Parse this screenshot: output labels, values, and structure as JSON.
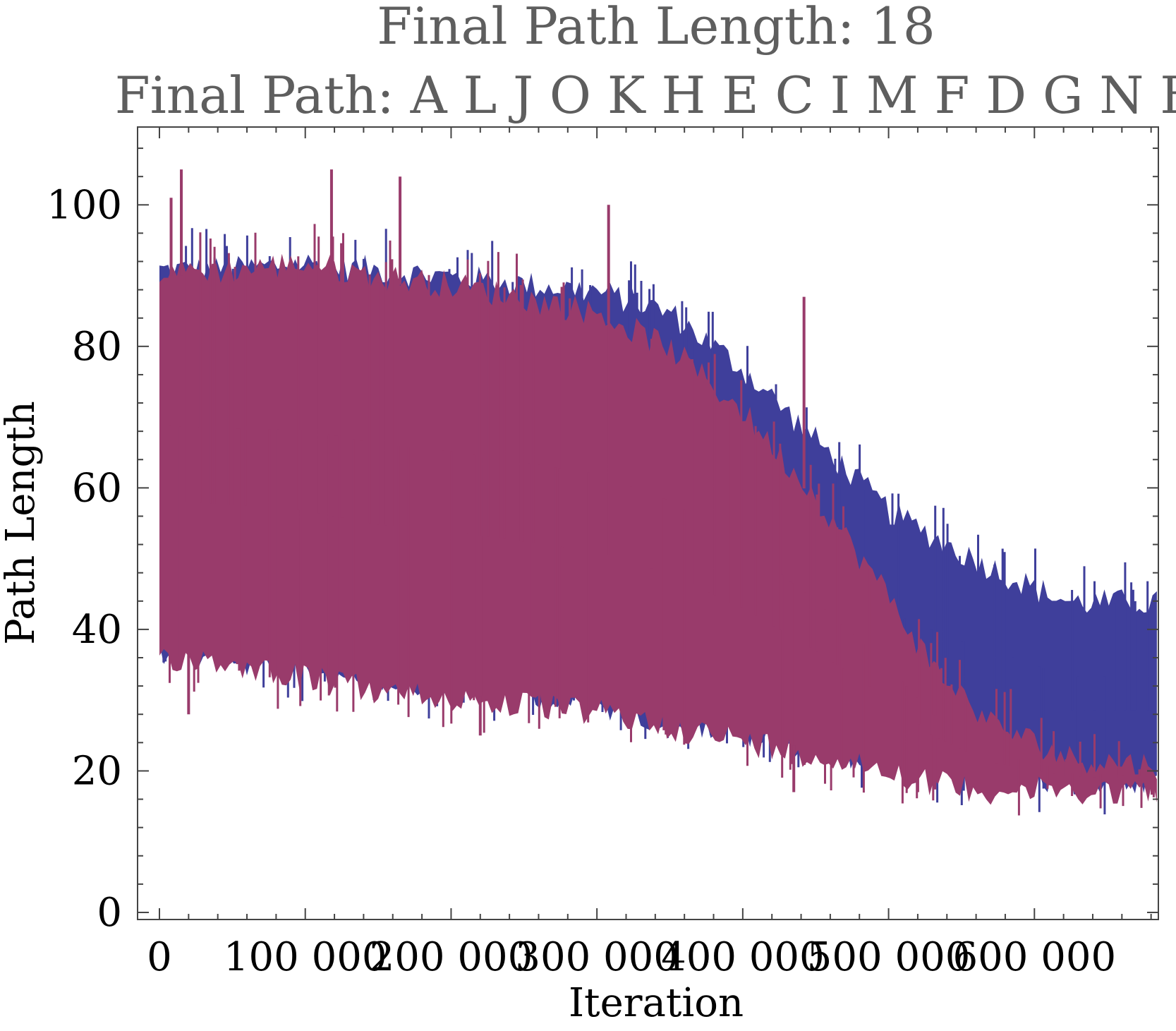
{
  "chart_data": {
    "type": "line",
    "title": "Final Path Length: 18",
    "subtitle": "Final Path: A L J O K H E C I M F D G N B",
    "xlabel": "Iteration",
    "ylabel": "Path Length",
    "xlim": [
      -15000,
      685000
    ],
    "ylim": [
      -1,
      111
    ],
    "x_ticks": [
      {
        "value": 0,
        "label": "0"
      },
      {
        "value": 100000,
        "label": "100 000"
      },
      {
        "value": 200000,
        "label": "200 000"
      },
      {
        "value": 300000,
        "label": "300 000"
      },
      {
        "value": 400000,
        "label": "400 000"
      },
      {
        "value": 500000,
        "label": "500 000"
      },
      {
        "value": 600000,
        "label": "600 000"
      }
    ],
    "y_ticks": [
      {
        "value": 0,
        "label": "0"
      },
      {
        "value": 20,
        "label": "20"
      },
      {
        "value": 40,
        "label": "40"
      },
      {
        "value": 60,
        "label": "60"
      },
      {
        "value": 80,
        "label": "80"
      },
      {
        "value": 100,
        "label": "100"
      }
    ],
    "grid": false,
    "legend": "none",
    "series": [
      {
        "color": "#3f3f9b",
        "envelope_x": [
          0,
          50000,
          100000,
          150000,
          200000,
          250000,
          300000,
          350000,
          400000,
          450000,
          500000,
          550000,
          600000,
          625000,
          684000
        ],
        "upper": [
          90,
          90,
          91,
          90,
          89,
          88,
          87,
          84,
          76,
          66,
          56,
          50,
          45,
          43,
          43
        ],
        "lower": [
          38,
          36,
          35,
          34,
          33,
          32,
          30,
          28,
          26,
          24,
          22,
          21,
          20,
          19,
          19
        ]
      },
      {
        "color": "#993b6b",
        "envelope_x": [
          0,
          50000,
          100000,
          150000,
          200000,
          250000,
          300000,
          350000,
          400000,
          450000,
          500000,
          530000,
          570000,
          625000,
          684000
        ],
        "upper": [
          90,
          90,
          91,
          89,
          88,
          86,
          84,
          79,
          70,
          58,
          44,
          34,
          26,
          21,
          20
        ],
        "lower": [
          37,
          36,
          34,
          32,
          31,
          30,
          29,
          27,
          25,
          23,
          21,
          19,
          18,
          18,
          18
        ]
      }
    ],
    "spikes": [
      {
        "x": 15000,
        "y": 105
      },
      {
        "x": 118000,
        "y": 105
      },
      {
        "x": 165000,
        "y": 104
      },
      {
        "x": 8000,
        "y": 101
      },
      {
        "x": 308000,
        "y": 100
      },
      {
        "x": 442000,
        "y": 87
      },
      {
        "x": 435000,
        "y": 17
      },
      {
        "x": 520000,
        "y": 17
      },
      {
        "x": 20000,
        "y": 28
      },
      {
        "x": 220000,
        "y": 25
      }
    ]
  }
}
